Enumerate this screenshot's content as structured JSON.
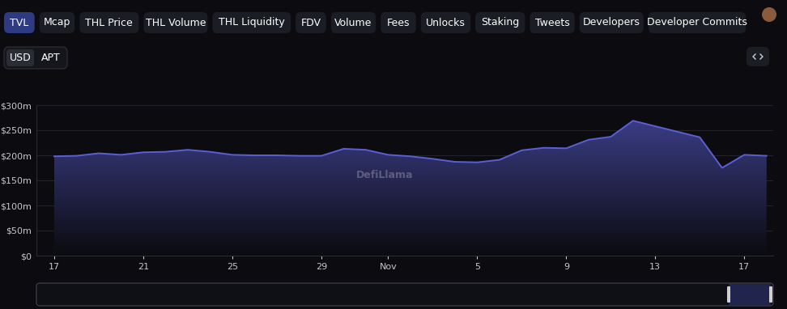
{
  "tabs": {
    "items": [
      "TVL",
      "Mcap",
      "THL Price",
      "THL Volume",
      "THL Liquidity",
      "FDV",
      "Volume",
      "Fees",
      "Unlocks",
      "Staking",
      "Tweets",
      "Developers",
      "Developer Commits"
    ],
    "active": "TVL"
  },
  "toggle": {
    "items": [
      "USD",
      "APT"
    ],
    "active": "USD"
  },
  "watermark": "DefiLlama",
  "chart_data": {
    "type": "area",
    "categories": [
      "17",
      null,
      null,
      null,
      "21",
      null,
      null,
      null,
      "25",
      null,
      null,
      null,
      "29",
      null,
      null,
      "Nov",
      null,
      null,
      null,
      "5",
      null,
      null,
      null,
      "9",
      null,
      null,
      null,
      "13",
      null,
      null,
      null,
      "17",
      null
    ],
    "values": [
      198,
      199,
      204,
      201,
      206,
      207,
      211,
      207,
      201,
      200,
      200,
      199,
      199,
      213,
      211,
      201,
      198,
      193,
      187,
      186,
      191,
      210,
      215,
      214,
      231,
      237,
      269,
      258,
      247,
      236,
      175,
      201,
      199
    ],
    "color": "#5b5fd6",
    "ylim": [
      0,
      300
    ],
    "yticks": [
      {
        "value": 0,
        "label": "$0"
      },
      {
        "value": 50,
        "label": "$50m"
      },
      {
        "value": 100,
        "label": "$100m"
      },
      {
        "value": 150,
        "label": "$150m"
      },
      {
        "value": 200,
        "label": "$200m"
      },
      {
        "value": 250,
        "label": "$250m"
      },
      {
        "value": 300,
        "label": "$300m"
      }
    ],
    "grid": true
  }
}
